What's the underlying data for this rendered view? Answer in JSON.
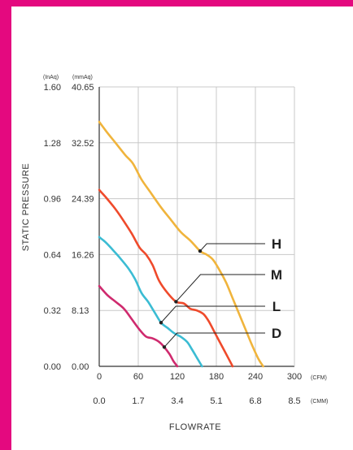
{
  "colors": {
    "frame": "#e4097f",
    "grid": "#c8c8c8",
    "axis": "#333333",
    "curve_h": "#f0b43c",
    "curve_m": "#ef4a2b",
    "curve_l": "#3bbcd3",
    "curve_d": "#cf2a6e"
  },
  "chart_data": {
    "type": "line",
    "ylabel": "STATIC PRESSURE",
    "xlabel": "FLOWRATE",
    "y_units_left": "(InAq)",
    "y_units_right": "(mmAq)",
    "x_units_primary": "(CFM)",
    "x_units_secondary": "(CMM)",
    "xlim": [
      0,
      300
    ],
    "ylim": [
      0,
      1.6
    ],
    "yticks_inaq": [
      "1.60",
      "1.28",
      "0.96",
      "0.64",
      "0.32",
      "0.00"
    ],
    "yticks_mmaq": [
      "40.65",
      "32.52",
      "24.39",
      "16.26",
      "8.13",
      "0.00"
    ],
    "xticks_cfm": [
      "0",
      "60",
      "120",
      "180",
      "240",
      "300"
    ],
    "xticks_cmm": [
      "0.0",
      "1.7",
      "3.4",
      "5.1",
      "6.8",
      "8.5"
    ],
    "grid": true,
    "series": [
      {
        "name": "H",
        "x": [
          0,
          12,
          25,
          40,
          52,
          65,
          80,
          95,
          110,
          125,
          140,
          155,
          165,
          175,
          185,
          195,
          205,
          215,
          225,
          235,
          245,
          252
        ],
        "y": [
          1.4,
          1.34,
          1.28,
          1.21,
          1.16,
          1.07,
          0.99,
          0.91,
          0.84,
          0.77,
          0.72,
          0.66,
          0.64,
          0.61,
          0.55,
          0.48,
          0.39,
          0.3,
          0.21,
          0.12,
          0.04,
          0.0
        ]
      },
      {
        "name": "M",
        "x": [
          0,
          12,
          25,
          38,
          50,
          62,
          72,
          82,
          92,
          105,
          118,
          130,
          140,
          150,
          160,
          168,
          178,
          188,
          198,
          205
        ],
        "y": [
          1.01,
          0.96,
          0.9,
          0.83,
          0.76,
          0.68,
          0.64,
          0.58,
          0.49,
          0.42,
          0.37,
          0.36,
          0.33,
          0.32,
          0.3,
          0.26,
          0.19,
          0.12,
          0.05,
          0.0
        ]
      },
      {
        "name": "L",
        "x": [
          0,
          10,
          20,
          32,
          45,
          55,
          65,
          75,
          85,
          95,
          105,
          115,
          125,
          135,
          142,
          150,
          158
        ],
        "y": [
          0.74,
          0.71,
          0.67,
          0.62,
          0.56,
          0.5,
          0.42,
          0.37,
          0.31,
          0.25,
          0.22,
          0.19,
          0.17,
          0.14,
          0.1,
          0.05,
          0.0
        ]
      },
      {
        "name": "D",
        "x": [
          0,
          12,
          25,
          38,
          50,
          62,
          72,
          82,
          92,
          100,
          108,
          114,
          120
        ],
        "y": [
          0.46,
          0.41,
          0.37,
          0.33,
          0.27,
          0.21,
          0.17,
          0.16,
          0.14,
          0.11,
          0.07,
          0.03,
          0.0
        ]
      }
    ],
    "callouts": [
      {
        "name": "H",
        "at": [
          155,
          0.66
        ]
      },
      {
        "name": "M",
        "at": [
          118,
          0.37
        ]
      },
      {
        "name": "L",
        "at": [
          95,
          0.25
        ]
      },
      {
        "name": "D",
        "at": [
          100,
          0.11
        ]
      }
    ]
  }
}
